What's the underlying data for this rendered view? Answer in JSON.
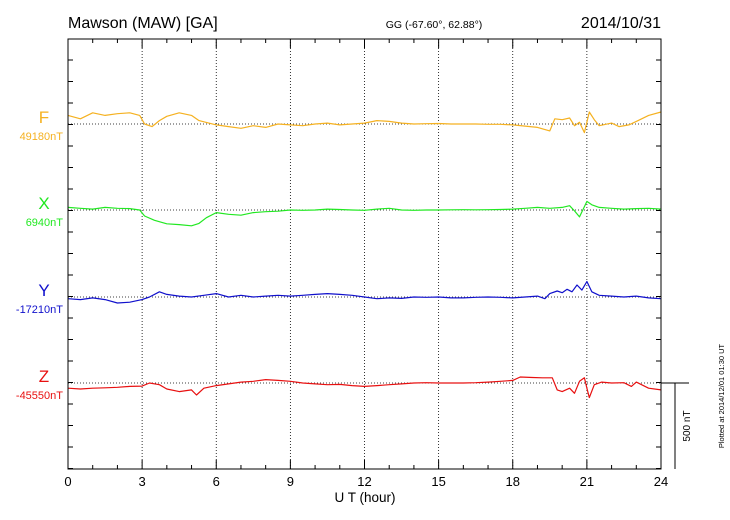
{
  "header": {
    "station": "Mawson (MAW)  [GA]",
    "coords": "GG (-67.60°,  62.88°)",
    "date": "2014/10/31"
  },
  "side_note": "Plotted at 2014/12/01 01:30 UT",
  "colors": {
    "F": "#f5b120",
    "X": "#22e822",
    "Y": "#1010cc",
    "Z": "#e81010"
  },
  "chart_data": {
    "type": "line",
    "xlabel": "U T (hour)",
    "xlim": [
      0,
      24
    ],
    "xticks": [
      0,
      3,
      6,
      9,
      12,
      15,
      18,
      21,
      24
    ],
    "xtick_labels": [
      "0",
      "3",
      "6",
      "9",
      "12",
      "15",
      "18",
      "21",
      "24"
    ],
    "scale_bar_label": "500 nT",
    "scale_bar_nT": 500,
    "grid": true,
    "series": [
      {
        "name": "F",
        "baseline_label": "49180nT",
        "baseline_nT": 49180,
        "points": [
          [
            0,
            49230
          ],
          [
            0.5,
            49210
          ],
          [
            1,
            49245
          ],
          [
            1.5,
            49230
          ],
          [
            2,
            49240
          ],
          [
            2.5,
            49245
          ],
          [
            2.9,
            49230
          ],
          [
            3.1,
            49180
          ],
          [
            3.4,
            49165
          ],
          [
            3.7,
            49200
          ],
          [
            4,
            49225
          ],
          [
            4.5,
            49245
          ],
          [
            5,
            49230
          ],
          [
            5.3,
            49200
          ],
          [
            5.7,
            49185
          ],
          [
            6,
            49175
          ],
          [
            6.5,
            49165
          ],
          [
            7,
            49155
          ],
          [
            7.5,
            49170
          ],
          [
            8,
            49160
          ],
          [
            8.5,
            49180
          ],
          [
            9,
            49175
          ],
          [
            9.5,
            49170
          ],
          [
            10,
            49180
          ],
          [
            10.5,
            49185
          ],
          [
            11,
            49175
          ],
          [
            11.5,
            49180
          ],
          [
            12,
            49185
          ],
          [
            12.5,
            49200
          ],
          [
            13,
            49195
          ],
          [
            13.5,
            49185
          ],
          [
            14,
            49180
          ],
          [
            14.5,
            49182
          ],
          [
            15,
            49183
          ],
          [
            15.5,
            49180
          ],
          [
            16,
            49180
          ],
          [
            16.5,
            49180
          ],
          [
            17,
            49178
          ],
          [
            17.5,
            49178
          ],
          [
            18,
            49175
          ],
          [
            18.5,
            49168
          ],
          [
            19,
            49160
          ],
          [
            19.5,
            49140
          ],
          [
            19.7,
            49210
          ],
          [
            20,
            49205
          ],
          [
            20.3,
            49215
          ],
          [
            20.5,
            49170
          ],
          [
            20.7,
            49190
          ],
          [
            20.9,
            49130
          ],
          [
            21.1,
            49250
          ],
          [
            21.3,
            49205
          ],
          [
            21.5,
            49170
          ],
          [
            22,
            49185
          ],
          [
            22.3,
            49165
          ],
          [
            22.7,
            49175
          ],
          [
            23,
            49195
          ],
          [
            23.5,
            49230
          ],
          [
            24,
            49250
          ]
        ]
      },
      {
        "name": "X",
        "baseline_label": "6940nT",
        "baseline_nT": 6940,
        "points": [
          [
            0,
            6955
          ],
          [
            0.5,
            6950
          ],
          [
            1,
            6945
          ],
          [
            1.5,
            6955
          ],
          [
            2,
            6950
          ],
          [
            2.5,
            6948
          ],
          [
            2.9,
            6940
          ],
          [
            3.1,
            6905
          ],
          [
            3.5,
            6880
          ],
          [
            4,
            6860
          ],
          [
            4.5,
            6855
          ],
          [
            5,
            6848
          ],
          [
            5.3,
            6862
          ],
          [
            5.6,
            6895
          ],
          [
            6,
            6925
          ],
          [
            6.5,
            6915
          ],
          [
            7,
            6910
          ],
          [
            7.5,
            6925
          ],
          [
            8,
            6930
          ],
          [
            8.5,
            6933
          ],
          [
            9,
            6940
          ],
          [
            9.5,
            6938
          ],
          [
            10,
            6940
          ],
          [
            10.5,
            6945
          ],
          [
            11,
            6943
          ],
          [
            11.5,
            6940
          ],
          [
            12,
            6938
          ],
          [
            12.5,
            6945
          ],
          [
            13,
            6950
          ],
          [
            13.5,
            6940
          ],
          [
            14,
            6938
          ],
          [
            14.5,
            6940
          ],
          [
            15,
            6940
          ],
          [
            15.5,
            6941
          ],
          [
            16,
            6942
          ],
          [
            16.5,
            6941
          ],
          [
            17,
            6942
          ],
          [
            17.5,
            6943
          ],
          [
            18,
            6945
          ],
          [
            18.5,
            6950
          ],
          [
            19,
            6955
          ],
          [
            19.5,
            6950
          ],
          [
            20,
            6955
          ],
          [
            20.3,
            6965
          ],
          [
            20.5,
            6935
          ],
          [
            20.7,
            6900
          ],
          [
            20.9,
            6960
          ],
          [
            21,
            6990
          ],
          [
            21.2,
            6970
          ],
          [
            21.5,
            6955
          ],
          [
            22,
            6950
          ],
          [
            22.5,
            6945
          ],
          [
            23,
            6948
          ],
          [
            23.5,
            6950
          ],
          [
            24,
            6945
          ]
        ]
      },
      {
        "name": "Y",
        "baseline_label": "-17210nT",
        "baseline_nT": -17210,
        "points": [
          [
            0,
            -17220
          ],
          [
            0.5,
            -17225
          ],
          [
            1,
            -17215
          ],
          [
            1.5,
            -17225
          ],
          [
            2,
            -17245
          ],
          [
            2.5,
            -17240
          ],
          [
            3,
            -17225
          ],
          [
            3.3,
            -17210
          ],
          [
            3.7,
            -17180
          ],
          [
            4,
            -17195
          ],
          [
            4.5,
            -17205
          ],
          [
            5,
            -17210
          ],
          [
            5.5,
            -17200
          ],
          [
            6,
            -17190
          ],
          [
            6.5,
            -17210
          ],
          [
            7,
            -17200
          ],
          [
            7.5,
            -17210
          ],
          [
            8,
            -17205
          ],
          [
            8.5,
            -17200
          ],
          [
            9,
            -17205
          ],
          [
            9.5,
            -17200
          ],
          [
            10,
            -17195
          ],
          [
            10.5,
            -17190
          ],
          [
            11,
            -17195
          ],
          [
            11.5,
            -17200
          ],
          [
            12,
            -17210
          ],
          [
            12.5,
            -17220
          ],
          [
            13,
            -17215
          ],
          [
            13.5,
            -17218
          ],
          [
            14,
            -17210
          ],
          [
            14.5,
            -17212
          ],
          [
            15,
            -17210
          ],
          [
            15.5,
            -17215
          ],
          [
            16,
            -17215
          ],
          [
            16.5,
            -17212
          ],
          [
            17,
            -17210
          ],
          [
            17.5,
            -17212
          ],
          [
            18,
            -17215
          ],
          [
            18.5,
            -17210
          ],
          [
            19,
            -17205
          ],
          [
            19.3,
            -17220
          ],
          [
            19.5,
            -17190
          ],
          [
            19.8,
            -17175
          ],
          [
            20,
            -17185
          ],
          [
            20.2,
            -17165
          ],
          [
            20.4,
            -17180
          ],
          [
            20.6,
            -17140
          ],
          [
            20.8,
            -17170
          ],
          [
            21,
            -17120
          ],
          [
            21.2,
            -17180
          ],
          [
            21.5,
            -17200
          ],
          [
            22,
            -17205
          ],
          [
            22.5,
            -17210
          ],
          [
            23,
            -17205
          ],
          [
            23.5,
            -17215
          ],
          [
            24,
            -17220
          ]
        ]
      },
      {
        "name": "Z",
        "baseline_label": "-45550nT",
        "baseline_nT": -45550,
        "points": [
          [
            0,
            -45580
          ],
          [
            0.5,
            -45585
          ],
          [
            1,
            -45580
          ],
          [
            1.5,
            -45578
          ],
          [
            2,
            -45575
          ],
          [
            2.5,
            -45570
          ],
          [
            3,
            -45568
          ],
          [
            3.3,
            -45550
          ],
          [
            3.7,
            -45560
          ],
          [
            4,
            -45585
          ],
          [
            4.5,
            -45600
          ],
          [
            5,
            -45590
          ],
          [
            5.2,
            -45620
          ],
          [
            5.5,
            -45580
          ],
          [
            6,
            -45565
          ],
          [
            6.5,
            -45555
          ],
          [
            7,
            -45545
          ],
          [
            7.5,
            -45540
          ],
          [
            8,
            -45530
          ],
          [
            8.5,
            -45535
          ],
          [
            9,
            -45540
          ],
          [
            9.5,
            -45550
          ],
          [
            10,
            -45555
          ],
          [
            10.5,
            -45560
          ],
          [
            11,
            -45558
          ],
          [
            11.5,
            -45565
          ],
          [
            12,
            -45570
          ],
          [
            12.5,
            -45565
          ],
          [
            13,
            -45560
          ],
          [
            13.5,
            -45555
          ],
          [
            14,
            -45550
          ],
          [
            14.5,
            -45548
          ],
          [
            15,
            -45550
          ],
          [
            15.5,
            -45550
          ],
          [
            16,
            -45550
          ],
          [
            16.5,
            -45548
          ],
          [
            17,
            -45545
          ],
          [
            17.5,
            -45540
          ],
          [
            18,
            -45535
          ],
          [
            18.3,
            -45515
          ],
          [
            18.8,
            -45518
          ],
          [
            19.2,
            -45520
          ],
          [
            19.6,
            -45520
          ],
          [
            19.8,
            -45590
          ],
          [
            20,
            -45600
          ],
          [
            20.3,
            -45580
          ],
          [
            20.5,
            -45610
          ],
          [
            20.7,
            -45540
          ],
          [
            20.9,
            -45520
          ],
          [
            21,
            -45580
          ],
          [
            21.1,
            -45635
          ],
          [
            21.3,
            -45560
          ],
          [
            21.6,
            -45545
          ],
          [
            22,
            -45550
          ],
          [
            22.5,
            -45548
          ],
          [
            22.8,
            -45570
          ],
          [
            23,
            -45545
          ],
          [
            23.5,
            -45580
          ],
          [
            24,
            -45590
          ]
        ]
      }
    ]
  }
}
